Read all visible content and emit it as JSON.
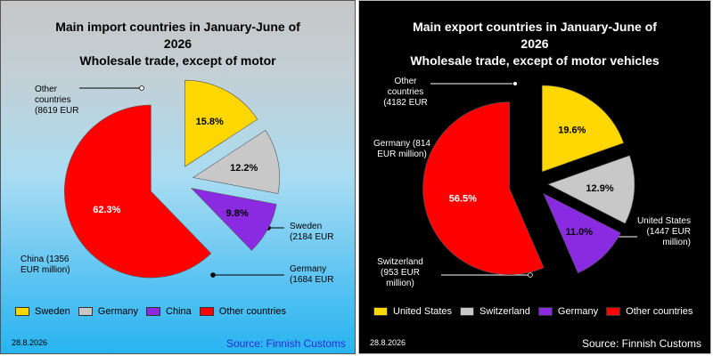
{
  "chart_data": [
    {
      "type": "pie",
      "title_lines": [
        "Main import countries in January-June of",
        "2026",
        "Wholesale trade, except of motor"
      ],
      "slices": [
        {
          "name": "Sweden",
          "percent": 15.8,
          "percent_label": "15.8%",
          "callout": [
            "Sweden",
            "(2184 EUR"
          ],
          "color": "#FFD700"
        },
        {
          "name": "Germany",
          "percent": 12.2,
          "percent_label": "12.2%",
          "callout": [
            "Germany",
            "(1684 EUR"
          ],
          "color": "#C8C8C8"
        },
        {
          "name": "China",
          "percent": 9.8,
          "percent_label": "9.8%",
          "callout": [
            "China (1356",
            "EUR million)"
          ],
          "color": "#8A2BE2"
        },
        {
          "name": "Other countries",
          "percent": 62.3,
          "percent_label": "62.3%",
          "callout": [
            "Other",
            "countries",
            "(8619 EUR"
          ],
          "color": "#FF0000"
        }
      ],
      "legend": [
        "Sweden",
        "Germany",
        "China",
        "Other countries"
      ],
      "date": "28.8.2026",
      "source": "Source: Finnish Customs"
    },
    {
      "type": "pie",
      "title_lines": [
        "Main export countries in January-June of",
        "2026",
        "Wholesale trade, except of motor vehicles"
      ],
      "slices": [
        {
          "name": "United States",
          "percent": 19.6,
          "percent_label": "19.6%",
          "callout": [
            "United States",
            "(1447 EUR",
            "million)"
          ],
          "color": "#FFD700"
        },
        {
          "name": "Switzerland",
          "percent": 12.9,
          "percent_label": "12.9%",
          "callout": [
            "Switzerland",
            "(953 EUR",
            "million)"
          ],
          "color": "#C8C8C8"
        },
        {
          "name": "Germany",
          "percent": 11.0,
          "percent_label": "11.0%",
          "callout": [
            "Germany (814",
            "EUR million)"
          ],
          "color": "#8A2BE2"
        },
        {
          "name": "Other countries",
          "percent": 56.5,
          "percent_label": "56.5%",
          "callout": [
            "Other",
            "countries",
            "(4182 EUR"
          ],
          "color": "#FF0000"
        }
      ],
      "legend": [
        "United States",
        "Switzerland",
        "Germany",
        "Other countries"
      ],
      "date": "28.8.2026",
      "source": "Source: Finnish Customs"
    }
  ]
}
